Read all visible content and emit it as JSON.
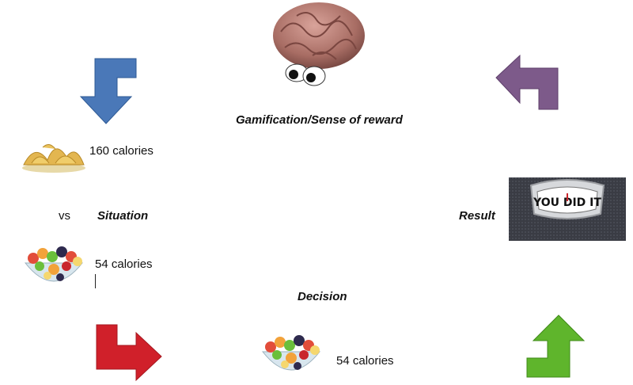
{
  "titles": {
    "reward": "Gamification/Sense of reward",
    "situation": "Situation",
    "result": "Result",
    "decision": "Decision",
    "vs": "vs"
  },
  "items": {
    "chips_calories": "160 calories",
    "fruit_calories_top": "54 calories",
    "fruit_calories_bottom": "54 calories"
  },
  "scale_text": "YOU DID IT",
  "colors": {
    "arrow_blue": "#4a78b8",
    "arrow_purple": "#7d5a8a",
    "arrow_red": "#d0202a",
    "arrow_green": "#5fb52c"
  },
  "icons": [
    "brain-icon",
    "chips-image",
    "fruit-bowl-image",
    "scale-image"
  ]
}
